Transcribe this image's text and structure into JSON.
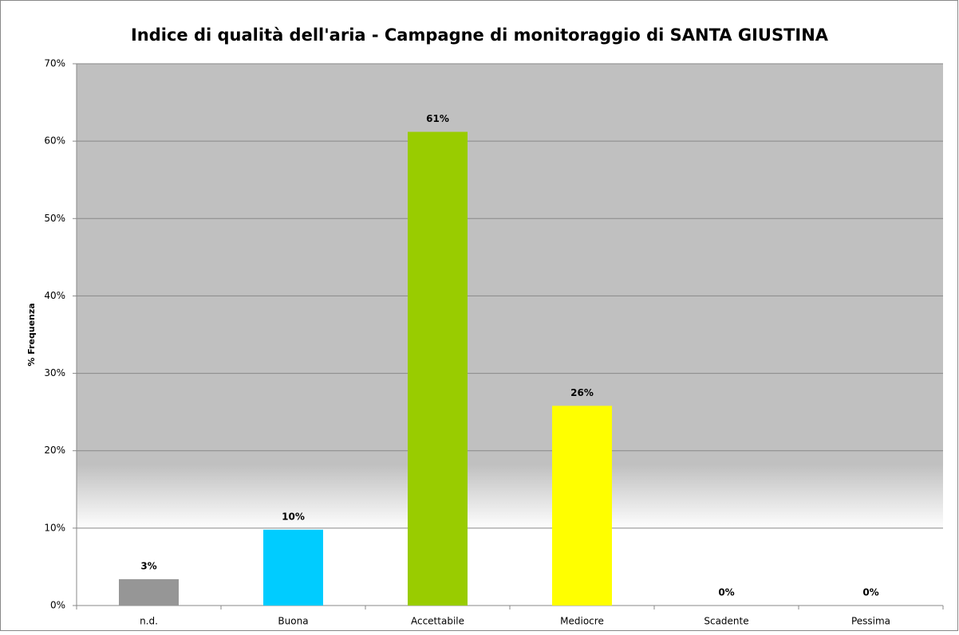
{
  "chart_data": {
    "type": "bar",
    "title": "Indice di qualità dell'aria - Campagne di monitoraggio di SANTA GIUSTINA",
    "y_label": "% Frequenza",
    "categories": [
      "n.d.",
      "Buona",
      "Accettabile",
      "Mediocre",
      "Scadente",
      "Pessima"
    ],
    "values": [
      3.4,
      9.8,
      61.2,
      25.8,
      0,
      0
    ],
    "value_labels": [
      "3%",
      "10%",
      "61%",
      "26%",
      "0%",
      "0%"
    ],
    "colors": [
      "#969696",
      "#00ccff",
      "#99cc00",
      "#ffff00",
      "#ff9900",
      "#ff0000"
    ],
    "ylim": [
      0,
      70
    ],
    "yticks": [
      {
        "value": 0,
        "label": "0%"
      },
      {
        "value": 10,
        "label": "10%"
      },
      {
        "value": 20,
        "label": "20%"
      },
      {
        "value": 30,
        "label": "30%"
      },
      {
        "value": 40,
        "label": "40%"
      },
      {
        "value": 50,
        "label": "50%"
      },
      {
        "value": 60,
        "label": "60%"
      },
      {
        "value": 70,
        "label": "70%"
      }
    ],
    "grid": true
  }
}
